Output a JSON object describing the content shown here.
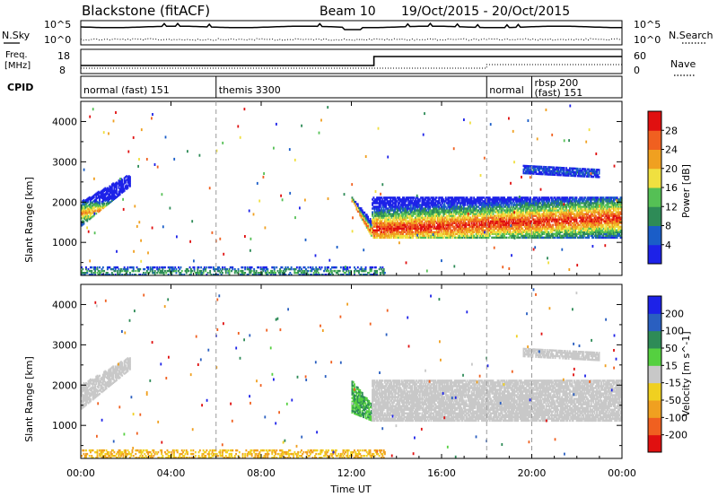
{
  "header": {
    "station": "Blackstone (fitACF)",
    "beam": "Beam 10",
    "date_range": "19/Oct/2015 - 20/Oct/2015"
  },
  "time_axis": {
    "label": "Time UT",
    "ticks": [
      "00:00",
      "04:00",
      "08:00",
      "12:00",
      "16:00",
      "20:00",
      "00:00"
    ],
    "tick_hours": [
      0,
      4,
      8,
      12,
      16,
      20,
      24
    ],
    "range_hours": [
      0,
      24
    ]
  },
  "noise_panel": {
    "left_label": "N.Sky",
    "right_label": "N.Search",
    "left_ticks": [
      "10^5",
      "10^0"
    ],
    "right_ticks": [
      "10^5",
      "10^0"
    ]
  },
  "freq_panel": {
    "left_label_line1": "Freq.",
    "left_label_line2": "[MHz]",
    "left_ticks": [
      "18",
      "8"
    ],
    "right_label": "Nave",
    "right_ticks": [
      "60",
      "0"
    ],
    "freq_step_hour": 13.0
  },
  "cpid_panel": {
    "label": "CPID",
    "segments": [
      {
        "line1": "normal (fast) 151",
        "line2": "",
        "start_hour": 0
      },
      {
        "line1": "themis 3300",
        "line2": "",
        "start_hour": 6
      },
      {
        "line1": "normal",
        "line2": "",
        "start_hour": 18
      },
      {
        "line1": "rbsp 200",
        "line2": "(fast) 151",
        "start_hour": 20
      }
    ]
  },
  "colors": {
    "power_scale": [
      "#1d22e8",
      "#1a5dc8",
      "#2e8b57",
      "#55c055",
      "#f0e040",
      "#f0a020",
      "#f06020",
      "#e01010"
    ],
    "velocity_scale": [
      "#e01010",
      "#f06020",
      "#f0a020",
      "#f0d020",
      "#c8c8c8",
      "#55d040",
      "#2e8b57",
      "#2a5fc0",
      "#1d22e8"
    ]
  },
  "chart_data": [
    {
      "type": "heatmap",
      "name": "power",
      "ylabel": "Slant Range [km]",
      "yticks": [
        1000,
        2000,
        3000,
        4000
      ],
      "ylim": [
        180,
        4500
      ],
      "xlim": [
        0,
        24
      ],
      "colorbar": {
        "label": "Power [dB]",
        "ticks": [
          "4",
          "8",
          "12",
          "16",
          "20",
          "24",
          "28"
        ],
        "range": [
          0,
          30
        ]
      },
      "bands": [
        {
          "t": [
            0.0,
            2.2
          ],
          "r_start": [
            1400,
            2400
          ],
          "r_end": [
            2000,
            2700
          ],
          "peak": [
            1700,
            1900
          ],
          "level": 22
        },
        {
          "t": [
            12.0,
            12.9
          ],
          "r_start": [
            2000,
            1100
          ],
          "r_end": [
            2100,
            1500
          ],
          "peak": [
            2000,
            1200
          ],
          "level": 26
        },
        {
          "t": [
            12.9,
            24.0
          ],
          "r_start": [
            1100,
            1100
          ],
          "r_end": [
            2100,
            2100
          ],
          "peak": [
            1300,
            1600
          ],
          "level": 28
        },
        {
          "t": [
            19.6,
            23.0
          ],
          "r_start": [
            2700,
            2600
          ],
          "r_end": [
            2900,
            2800
          ],
          "peak": [
            2800,
            2700
          ],
          "level": 6
        },
        {
          "t": [
            0.0,
            13.5
          ],
          "r_start": [
            180,
            180
          ],
          "r_end": [
            400,
            400
          ],
          "peak": [
            250,
            250
          ],
          "level": 12
        }
      ]
    },
    {
      "type": "heatmap",
      "name": "velocity",
      "ylabel": "Slant Range [km]",
      "yticks": [
        1000,
        2000,
        3000,
        4000
      ],
      "ylim": [
        180,
        4500
      ],
      "xlim": [
        0,
        24
      ],
      "colorbar": {
        "label": "Velocity [m s^-1]",
        "ticks": [
          "200",
          "100",
          "50",
          "15",
          "-15",
          "-50",
          "-100",
          "-200"
        ],
        "range": [
          -250,
          250
        ]
      },
      "bands": [
        {
          "t": [
            0.0,
            2.2
          ],
          "r_start": [
            1400,
            2400
          ],
          "r_end": [
            2000,
            2700
          ],
          "velocity": 0
        },
        {
          "t": [
            12.0,
            12.9
          ],
          "r_start": [
            1300,
            1100
          ],
          "r_end": [
            2100,
            1500
          ],
          "velocity": 30
        },
        {
          "t": [
            12.9,
            24.0
          ],
          "r_start": [
            1100,
            1100
          ],
          "r_end": [
            2100,
            2100
          ],
          "velocity": 0
        },
        {
          "t": [
            19.6,
            23.0
          ],
          "r_start": [
            2700,
            2600
          ],
          "r_end": [
            2900,
            2800
          ],
          "velocity": 0
        },
        {
          "t": [
            0.0,
            13.5
          ],
          "r_start": [
            180,
            180
          ],
          "r_end": [
            400,
            400
          ],
          "velocity": -30
        }
      ]
    }
  ]
}
